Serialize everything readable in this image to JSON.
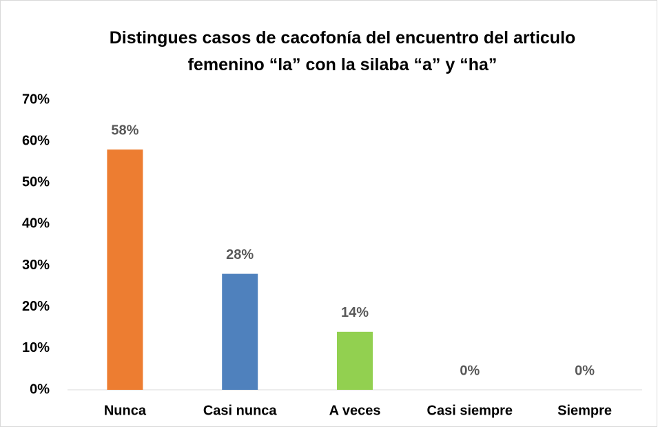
{
  "chart_data": {
    "type": "bar",
    "title": "Distingues casos de cacofonía del encuentro del articulo femenino “la” con la silaba “a” y “ha”",
    "categories": [
      "Nunca",
      "Casi nunca",
      "A veces",
      "Casi siempre",
      "Siempre"
    ],
    "values": [
      58,
      28,
      14,
      0,
      0
    ],
    "value_labels": [
      "58%",
      "28%",
      "14%",
      "0%",
      "0%"
    ],
    "colors": [
      "#ed7d31",
      "#4f81bd",
      "#92d050",
      "#8064a2",
      "#4bacc6"
    ],
    "ylim": [
      0,
      70
    ],
    "yticks": [
      {
        "value": 0,
        "label": "0%"
      },
      {
        "value": 10,
        "label": "10%"
      },
      {
        "value": 20,
        "label": "20%"
      },
      {
        "value": 30,
        "label": "30%"
      },
      {
        "value": 40,
        "label": "40%"
      },
      {
        "value": 50,
        "label": "50%"
      },
      {
        "value": 60,
        "label": "60%"
      },
      {
        "value": 70,
        "label": "70%"
      }
    ],
    "grid": false
  }
}
